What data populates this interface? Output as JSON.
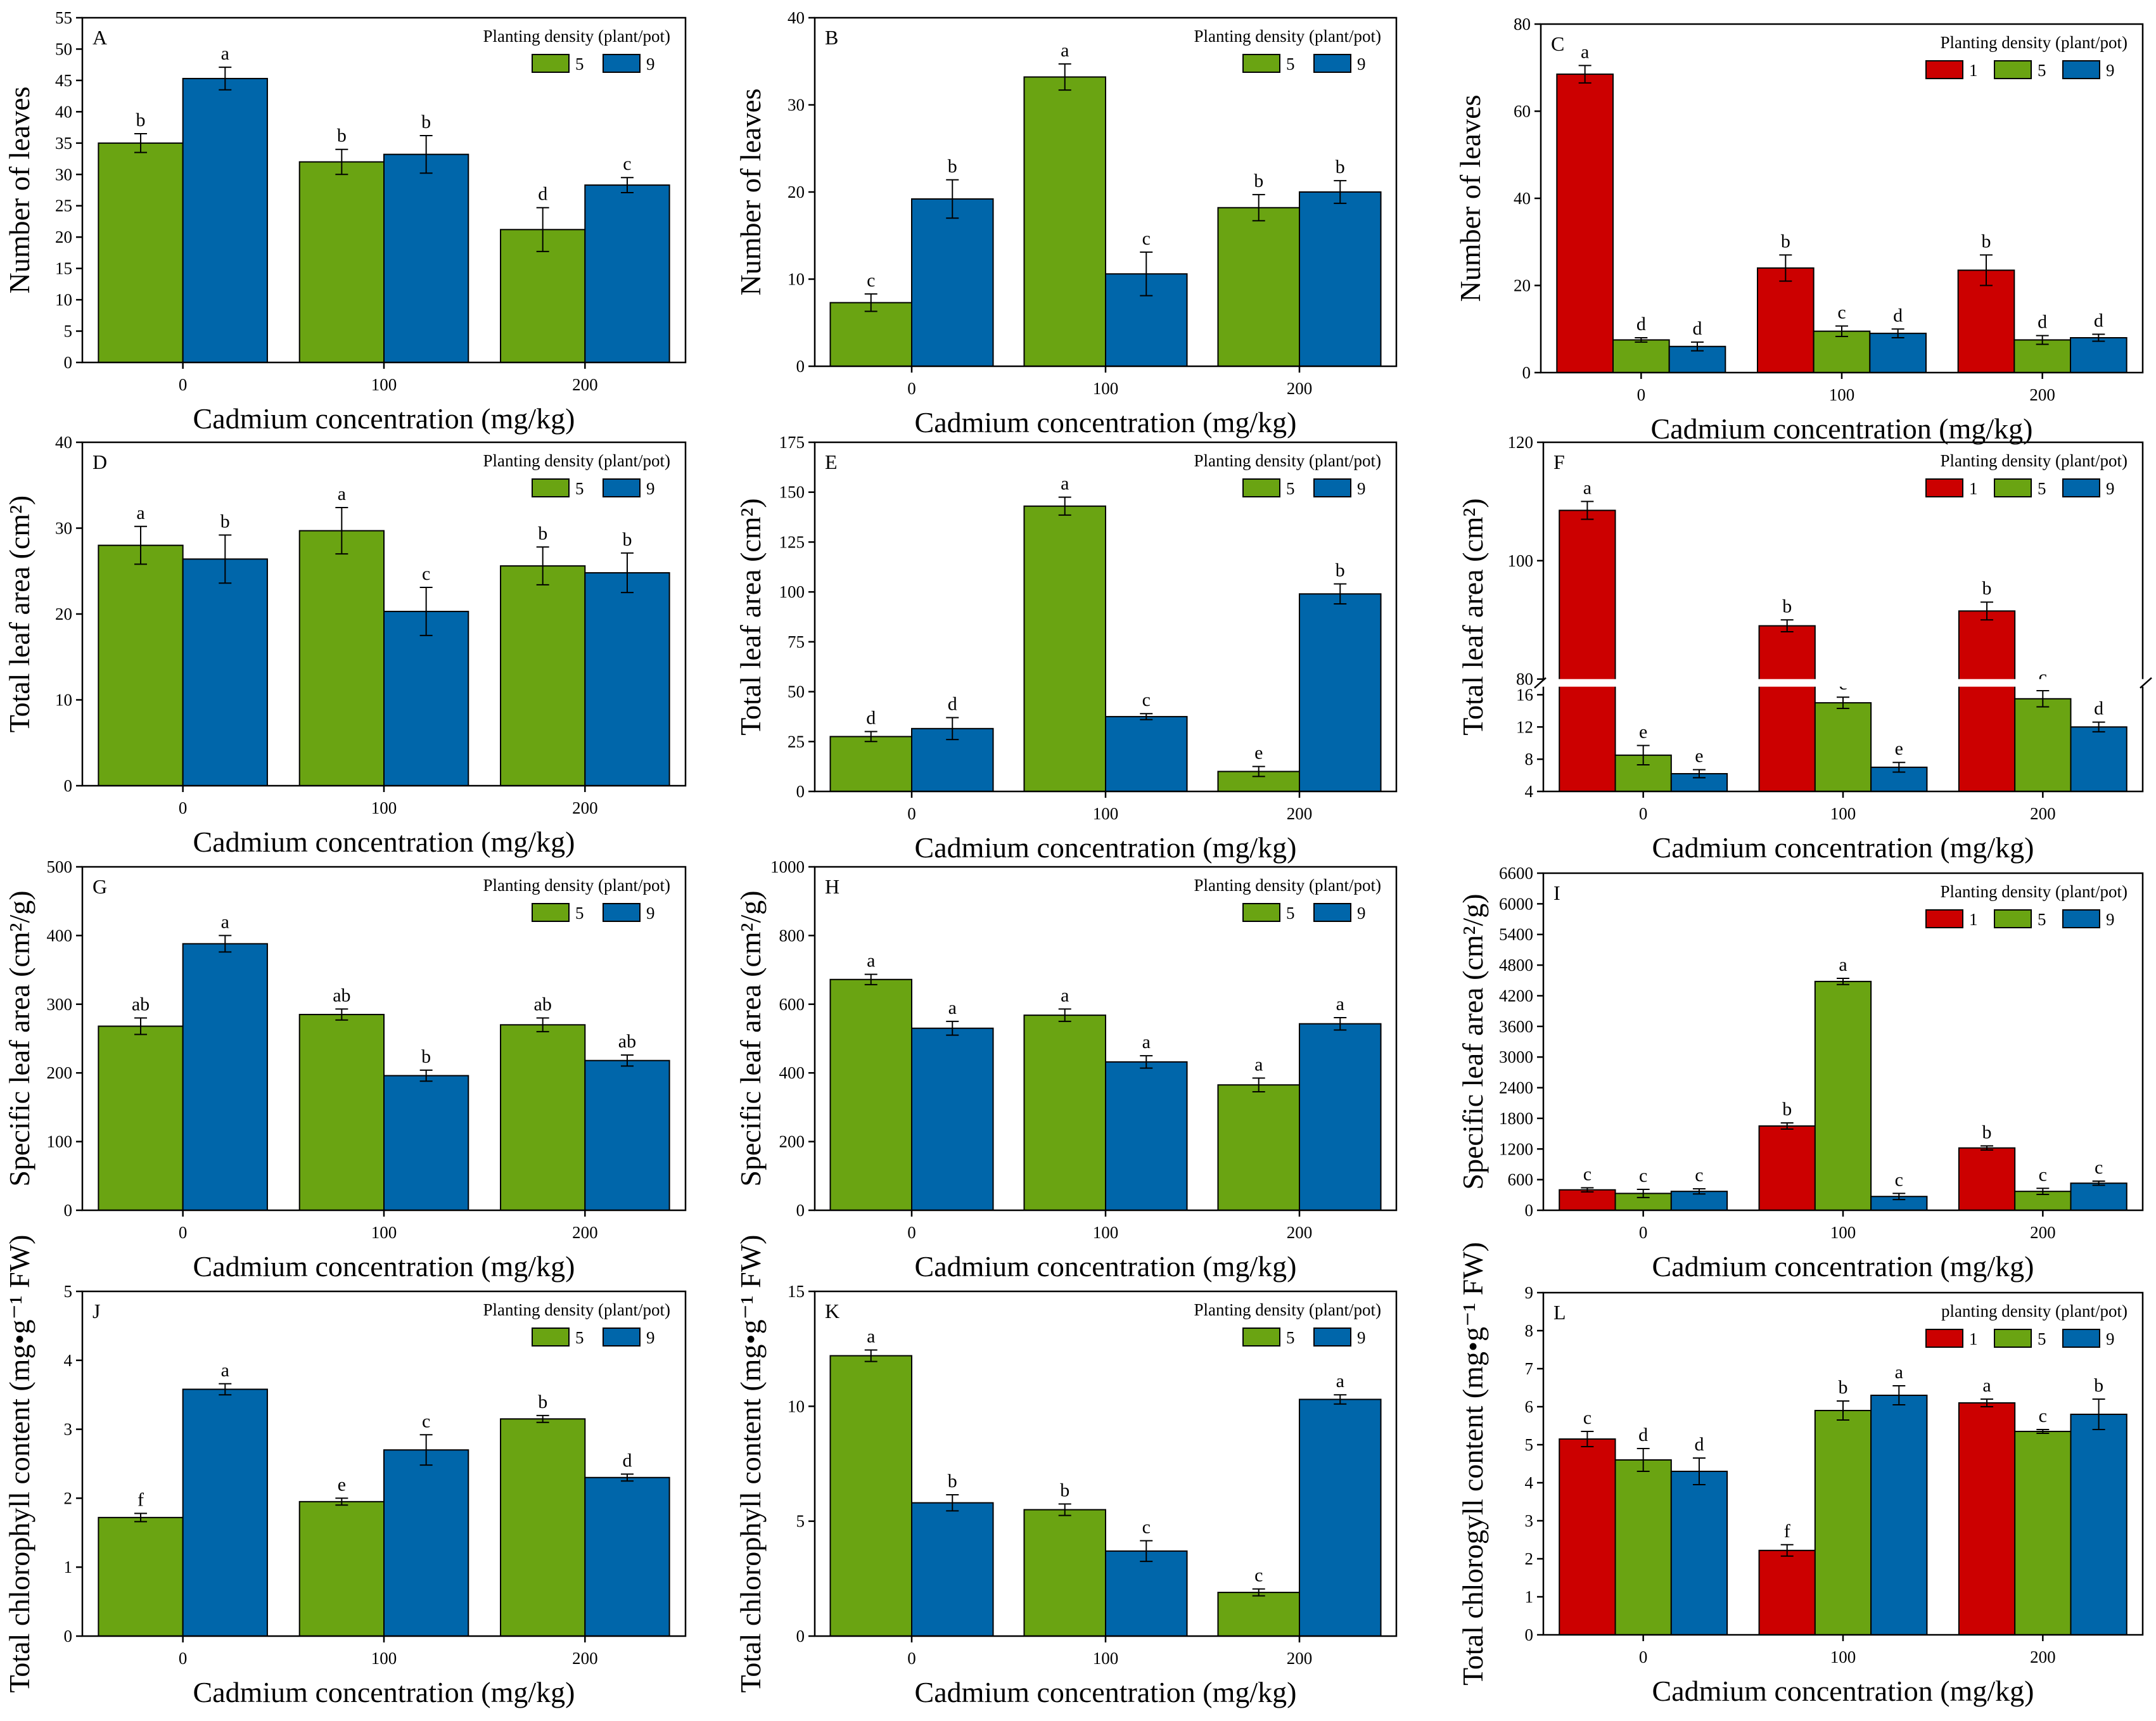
{
  "colors": {
    "d1": "#cc0000",
    "d5": "#6aa412",
    "d9": "#0066aa"
  },
  "chart_data": [
    {
      "id": "A",
      "type": "bar",
      "letter": "A",
      "xlabel": "Cadmium concentration (mg/kg)",
      "ylabel": "Number of leaves",
      "ylim": [
        0,
        55
      ],
      "yticks": [
        0,
        5,
        10,
        15,
        20,
        25,
        30,
        35,
        40,
        45,
        50,
        55
      ],
      "categories": [
        "0",
        "100",
        "200"
      ],
      "legend_title": "Planting density (plant/pot)",
      "series": [
        {
          "name": "5",
          "color": "d5",
          "values": [
            35.0,
            32.0,
            21.2
          ],
          "errors": [
            1.5,
            2.0,
            3.5
          ],
          "letters": [
            "b",
            "b",
            "d"
          ]
        },
        {
          "name": "9",
          "color": "d9",
          "values": [
            45.3,
            33.2,
            28.3
          ],
          "errors": [
            1.8,
            3.0,
            1.2
          ],
          "letters": [
            "a",
            "b",
            "c"
          ]
        }
      ]
    },
    {
      "id": "B",
      "type": "bar",
      "letter": "B",
      "xlabel": "Cadmium concentration (mg/kg)",
      "ylabel": "Number of leaves",
      "ylim": [
        0,
        40
      ],
      "yticks": [
        0,
        10,
        20,
        30,
        40
      ],
      "categories": [
        "0",
        "100",
        "200"
      ],
      "legend_title": "Planting density (plant/pot)",
      "series": [
        {
          "name": "5",
          "color": "d5",
          "values": [
            7.3,
            33.2,
            18.2
          ],
          "errors": [
            1.0,
            1.5,
            1.5
          ],
          "letters": [
            "c",
            "a",
            "b"
          ]
        },
        {
          "name": "9",
          "color": "d9",
          "values": [
            19.2,
            10.6,
            20.0
          ],
          "errors": [
            2.2,
            2.5,
            1.3
          ],
          "letters": [
            "b",
            "c",
            "b"
          ]
        }
      ]
    },
    {
      "id": "C",
      "type": "bar",
      "letter": "C",
      "xlabel": "Cadmium concentration (mg/kg)",
      "ylabel": "Number of leaves",
      "ylim": [
        0,
        80
      ],
      "yticks": [
        0,
        20,
        40,
        60,
        80
      ],
      "categories": [
        "0",
        "100",
        "200"
      ],
      "legend_title": "Planting density (plant/pot)",
      "series": [
        {
          "name": "1",
          "color": "d1",
          "values": [
            68.5,
            24.0,
            23.5
          ],
          "errors": [
            2.0,
            3.0,
            3.5
          ],
          "letters": [
            "a",
            "b",
            "b"
          ]
        },
        {
          "name": "5",
          "color": "d5",
          "values": [
            7.5,
            9.5,
            7.5
          ],
          "errors": [
            0.5,
            1.2,
            1.0
          ],
          "letters": [
            "d",
            "c",
            "d"
          ]
        },
        {
          "name": "9",
          "color": "d9",
          "values": [
            6.0,
            9.0,
            8.0
          ],
          "errors": [
            1.0,
            1.0,
            0.8
          ],
          "letters": [
            "d",
            "d",
            "d"
          ]
        }
      ]
    },
    {
      "id": "D",
      "type": "bar",
      "letter": "D",
      "xlabel": "Cadmium concentration (mg/kg)",
      "ylabel": "Total leaf area (cm²)",
      "ylim": [
        0,
        40
      ],
      "yticks": [
        0,
        10,
        20,
        30,
        40
      ],
      "categories": [
        "0",
        "100",
        "200"
      ],
      "legend_title": "Planting density (plant/pot)",
      "series": [
        {
          "name": "5",
          "color": "d5",
          "values": [
            28.0,
            29.7,
            25.6
          ],
          "errors": [
            2.2,
            2.7,
            2.2
          ],
          "letters": [
            "a",
            "a",
            "b"
          ]
        },
        {
          "name": "9",
          "color": "d9",
          "values": [
            26.4,
            20.3,
            24.8
          ],
          "errors": [
            2.8,
            2.8,
            2.3
          ],
          "letters": [
            "b",
            "c",
            "b"
          ]
        }
      ]
    },
    {
      "id": "E",
      "type": "bar",
      "letter": "E",
      "xlabel": "Cadmium concentration (mg/kg)",
      "ylabel": "Total leaf area (cm²)",
      "ylim": [
        0,
        175
      ],
      "yticks": [
        0,
        25,
        50,
        75,
        100,
        125,
        150,
        175
      ],
      "categories": [
        "0",
        "100",
        "200"
      ],
      "legend_title": "Planting density (plant/pot)",
      "series": [
        {
          "name": "5",
          "color": "d5",
          "values": [
            27.5,
            143.0,
            10.0
          ],
          "errors": [
            2.5,
            4.5,
            2.5
          ],
          "letters": [
            "d",
            "a",
            "e"
          ]
        },
        {
          "name": "9",
          "color": "d9",
          "values": [
            31.5,
            37.5,
            99.0
          ],
          "errors": [
            5.5,
            1.5,
            5.0
          ],
          "letters": [
            "d",
            "c",
            "b"
          ]
        }
      ]
    },
    {
      "id": "F",
      "type": "bar",
      "letter": "F",
      "xlabel": "Cadmium concentration (mg/kg)",
      "ylabel": "Total leaf area (cm²)",
      "broken_axis": true,
      "lower_range": [
        4,
        17
      ],
      "upper_range": [
        80,
        120
      ],
      "yticks": [
        4,
        8,
        12,
        16,
        80,
        100,
        120
      ],
      "categories": [
        "0",
        "100",
        "200"
      ],
      "legend_title": "Planting density (plant/pot)",
      "series": [
        {
          "name": "1",
          "color": "d1",
          "values": [
            108.5,
            89.0,
            91.5
          ],
          "errors": [
            1.5,
            1.0,
            1.5
          ],
          "letters": [
            "a",
            "b",
            "b"
          ]
        },
        {
          "name": "5",
          "color": "d5",
          "values": [
            8.5,
            15.0,
            15.5
          ],
          "errors": [
            1.2,
            0.7,
            1.0
          ],
          "letters": [
            "e",
            "c",
            "c"
          ]
        },
        {
          "name": "9",
          "color": "d9",
          "values": [
            6.2,
            7.0,
            12.0
          ],
          "errors": [
            0.5,
            0.6,
            0.6
          ],
          "letters": [
            "e",
            "e",
            "d"
          ]
        }
      ]
    },
    {
      "id": "G",
      "type": "bar",
      "letter": "G",
      "xlabel": "Cadmium concentration (mg/kg)",
      "ylabel": "Specific leaf area (cm²/g)",
      "ylim": [
        0,
        500
      ],
      "yticks": [
        0,
        100,
        200,
        300,
        400,
        500
      ],
      "categories": [
        "0",
        "100",
        "200"
      ],
      "legend_title": "Planting density (plant/pot)",
      "series": [
        {
          "name": "5",
          "color": "d5",
          "values": [
            268,
            285,
            270
          ],
          "errors": [
            12,
            8,
            10
          ],
          "letters": [
            "ab",
            "ab",
            "ab"
          ]
        },
        {
          "name": "9",
          "color": "d9",
          "values": [
            388,
            196,
            218
          ],
          "errors": [
            12,
            8,
            8
          ],
          "letters": [
            "a",
            "b",
            "ab"
          ]
        }
      ]
    },
    {
      "id": "H",
      "type": "bar",
      "letter": "H",
      "xlabel": "Cadmium concentration (mg/kg)",
      "ylabel": "Specific leaf area (cm²/g)",
      "ylim": [
        0,
        1000
      ],
      "yticks": [
        0,
        200,
        400,
        600,
        800,
        1000
      ],
      "categories": [
        "0",
        "100",
        "200"
      ],
      "legend_title": "Planting density (plant/pot)",
      "series": [
        {
          "name": "5",
          "color": "d5",
          "values": [
            672,
            568,
            365
          ],
          "errors": [
            15,
            18,
            20
          ],
          "letters": [
            "a",
            "a",
            "a"
          ]
        },
        {
          "name": "9",
          "color": "d9",
          "values": [
            530,
            432,
            543
          ],
          "errors": [
            20,
            18,
            18
          ],
          "letters": [
            "a",
            "a",
            "a"
          ]
        }
      ]
    },
    {
      "id": "I",
      "type": "bar",
      "letter": "I",
      "xlabel": "Cadmium concentration (mg/kg)",
      "ylabel": "Specific leaf area (cm²/g)",
      "ylim": [
        0,
        6600
      ],
      "yticks": [
        0,
        600,
        1200,
        1800,
        2400,
        3000,
        3600,
        4200,
        4800,
        5400,
        6000,
        6600
      ],
      "categories": [
        "0",
        "100",
        "200"
      ],
      "legend_title": "Planting density (plant/pot)",
      "series": [
        {
          "name": "1",
          "color": "d1",
          "values": [
            400,
            1650,
            1220
          ],
          "errors": [
            40,
            60,
            40
          ],
          "letters": [
            "c",
            "b",
            "b"
          ]
        },
        {
          "name": "5",
          "color": "d5",
          "values": [
            330,
            4480,
            370
          ],
          "errors": [
            80,
            60,
            60
          ],
          "letters": [
            "c",
            "a",
            "c"
          ]
        },
        {
          "name": "9",
          "color": "d9",
          "values": [
            370,
            270,
            530
          ],
          "errors": [
            50,
            60,
            40
          ],
          "letters": [
            "c",
            "c",
            "c"
          ]
        }
      ]
    },
    {
      "id": "J",
      "type": "bar",
      "letter": "J",
      "xlabel": "Cadmium concentration (mg/kg)",
      "ylabel": "Total chlorophyll content (mg•g⁻¹ FW)",
      "ylim": [
        0,
        5
      ],
      "yticks": [
        0,
        1,
        2,
        3,
        4,
        5
      ],
      "categories": [
        "0",
        "100",
        "200"
      ],
      "legend_title": "Planting density (plant/pot)",
      "series": [
        {
          "name": "5",
          "color": "d5",
          "values": [
            1.72,
            1.95,
            3.15
          ],
          "errors": [
            0.06,
            0.05,
            0.05
          ],
          "letters": [
            "f",
            "e",
            "b"
          ]
        },
        {
          "name": "9",
          "color": "d9",
          "values": [
            3.58,
            2.7,
            2.3
          ],
          "errors": [
            0.08,
            0.22,
            0.05
          ],
          "letters": [
            "a",
            "c",
            "d"
          ]
        }
      ]
    },
    {
      "id": "K",
      "type": "bar",
      "letter": "K",
      "xlabel": "Cadmium concentration (mg/kg)",
      "ylabel": "Total chlorophyll content (mg•g⁻¹ FW)",
      "ylim": [
        0,
        15
      ],
      "yticks": [
        0,
        5,
        10,
        15
      ],
      "categories": [
        "0",
        "100",
        "200"
      ],
      "legend_title": "Planting density (plant/pot)",
      "series": [
        {
          "name": "5",
          "color": "d5",
          "values": [
            12.2,
            5.5,
            1.9
          ],
          "errors": [
            0.25,
            0.25,
            0.15
          ],
          "letters": [
            "a",
            "b",
            "c"
          ]
        },
        {
          "name": "9",
          "color": "d9",
          "values": [
            5.8,
            3.7,
            10.3
          ],
          "errors": [
            0.35,
            0.45,
            0.2
          ],
          "letters": [
            "b",
            "c",
            "a"
          ]
        }
      ]
    },
    {
      "id": "L",
      "type": "bar",
      "letter": "L",
      "xlabel": "Cadmium concentration (mg/kg)",
      "ylabel": "Total chlorogyll content (mg•g⁻¹ FW)",
      "ylim": [
        0,
        9
      ],
      "yticks": [
        0,
        1,
        2,
        3,
        4,
        5,
        6,
        7,
        8,
        9
      ],
      "categories": [
        "0",
        "100",
        "200"
      ],
      "legend_title": "planting density (plant/pot)",
      "series": [
        {
          "name": "1",
          "color": "d1",
          "values": [
            5.15,
            2.22,
            6.1
          ],
          "errors": [
            0.2,
            0.15,
            0.1
          ],
          "letters": [
            "c",
            "f",
            "a"
          ]
        },
        {
          "name": "5",
          "color": "d5",
          "values": [
            4.6,
            5.9,
            5.35
          ],
          "errors": [
            0.3,
            0.25,
            0.05
          ],
          "letters": [
            "d",
            "b",
            "c"
          ]
        },
        {
          "name": "9",
          "color": "d9",
          "values": [
            4.3,
            6.3,
            5.8
          ],
          "errors": [
            0.35,
            0.25,
            0.4
          ],
          "letters": [
            "d",
            "a",
            "b"
          ]
        }
      ]
    }
  ]
}
